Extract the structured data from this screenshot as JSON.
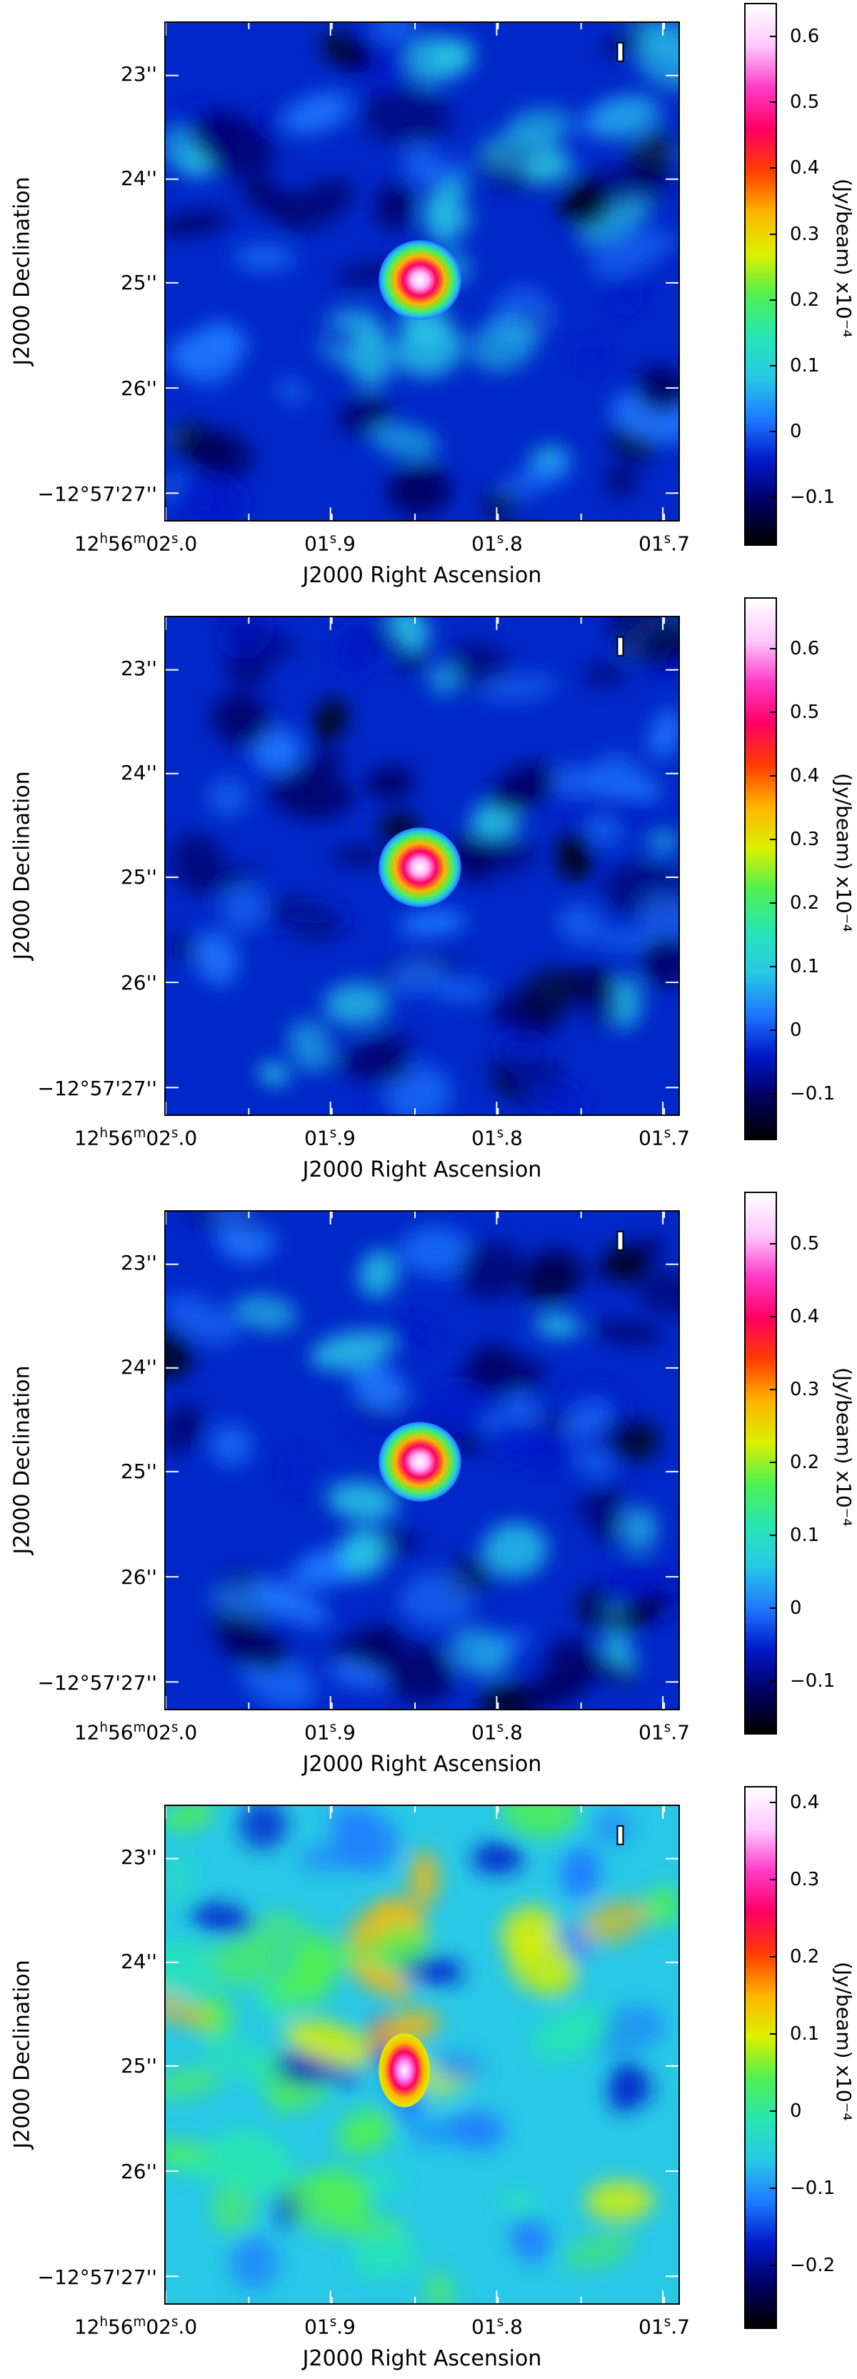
{
  "axes": {
    "x_title": "J2000 Right Ascension",
    "y_title": "J2000 Declination",
    "x_ticks": [
      {
        "h": "12",
        "m": "56",
        "s": "02",
        "frac": "0"
      },
      {
        "s": "01",
        "frac": "9"
      },
      {
        "s": "01",
        "frac": "8"
      },
      {
        "s": "01",
        "frac": "7"
      }
    ],
    "y_ticks": [
      "23''",
      "24''",
      "25''",
      "26''",
      "−12°57'27''"
    ],
    "y_tick_last_parts": {
      "deg": "−12",
      "rest": "57'27''"
    }
  },
  "colorbar_unit": "(Jy/beam)  x10⁻⁴",
  "panels": [
    {
      "name": "panel-1",
      "colorbar_ticks": [
        "0.6",
        "0.5",
        "0.4",
        "0.3",
        "0.2",
        "0.1",
        "0",
        "−0.1"
      ],
      "cbar_range": [
        -0.17,
        0.65
      ],
      "source_peak": 0.65,
      "background": "low"
    },
    {
      "name": "panel-2",
      "colorbar_ticks": [
        "0.6",
        "0.5",
        "0.4",
        "0.3",
        "0.2",
        "0.1",
        "0",
        "−0.1"
      ],
      "cbar_range": [
        -0.17,
        0.68
      ],
      "source_peak": 0.68,
      "background": "low"
    },
    {
      "name": "panel-3",
      "colorbar_ticks": [
        "0.5",
        "0.4",
        "0.3",
        "0.2",
        "0.1",
        "0",
        "−0.1"
      ],
      "cbar_range": [
        -0.17,
        0.57
      ],
      "source_peak": 0.57,
      "background": "low"
    },
    {
      "name": "panel-4",
      "colorbar_ticks": [
        "0.4",
        "0.3",
        "0.2",
        "0.1",
        "0",
        "−0.1",
        "−0.2"
      ],
      "cbar_range": [
        -0.28,
        0.42
      ],
      "source_peak": 0.42,
      "background": "high"
    }
  ],
  "colors": {
    "cmap": [
      "#000000",
      "#000060",
      "#0018c8",
      "#1e78ff",
      "#28c8e6",
      "#28e6b4",
      "#50f050",
      "#dcf000",
      "#ffb400",
      "#ff3c00",
      "#ff0064",
      "#ff3cc8",
      "#ffc8ff",
      "#ffffff"
    ]
  }
}
